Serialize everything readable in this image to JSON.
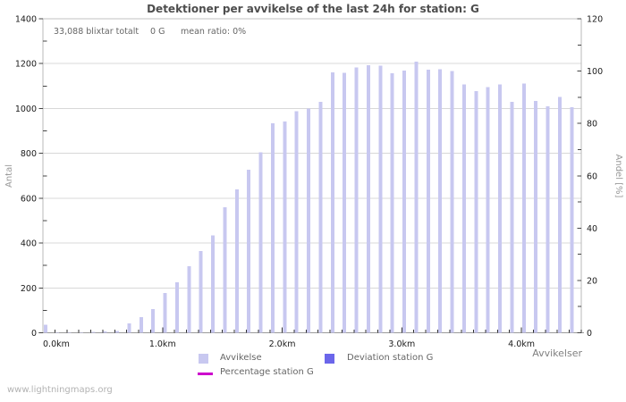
{
  "window": {
    "title": "Detektioner per avvikelse of the last 24h for station: G"
  },
  "chart_data": {
    "type": "bar",
    "title": "Detektioner per avvikelse of the last 24h for station: G",
    "stats_line": {
      "total": "33,088 blixtar totalt",
      "station_count": "0 G",
      "mean_ratio": "mean ratio: 0%"
    },
    "xlabel": "Avvikelser",
    "ylabel_left": "Antal",
    "ylabel_right": "Andel [%]",
    "ylim_left": [
      0,
      1400
    ],
    "ylim_right": [
      0,
      120
    ],
    "y_left_major_step": 200,
    "y_left_minor_step": 100,
    "y_right_major_step": 20,
    "y_right_minor_step": 10,
    "xlim_km": [
      0,
      4.5
    ],
    "x_minor_step_km": 0.1,
    "x_tick_labels": [
      "0.0km",
      "1.0km",
      "2.0km",
      "3.0km",
      "4.0km"
    ],
    "grid": true,
    "legend_position": "bottom",
    "x_km": [
      0.0,
      0.1,
      0.2,
      0.3,
      0.4,
      0.5,
      0.6,
      0.7,
      0.8,
      0.9,
      1.0,
      1.1,
      1.2,
      1.3,
      1.4,
      1.5,
      1.6,
      1.7,
      1.8,
      1.9,
      2.0,
      2.1,
      2.2,
      2.3,
      2.4,
      2.5,
      2.6,
      2.7,
      2.8,
      2.9,
      3.0,
      3.1,
      3.2,
      3.3,
      3.4,
      3.5,
      3.6,
      3.7,
      3.8,
      3.9,
      4.0,
      4.1,
      4.2,
      4.3,
      4.4
    ],
    "series": [
      {
        "name": "Avvikelse",
        "type": "bar",
        "color": "#c8c8f0",
        "values": [
          35,
          1,
          1,
          2,
          4,
          5,
          8,
          42,
          70,
          105,
          178,
          225,
          297,
          364,
          434,
          560,
          640,
          726,
          805,
          934,
          942,
          988,
          1000,
          1030,
          1162,
          1160,
          1182,
          1192,
          1190,
          1157,
          1168,
          1208,
          1172,
          1175,
          1167,
          1107,
          1078,
          1096,
          1108,
          1030,
          1112,
          1034,
          1010,
          1051,
          1005
        ]
      },
      {
        "name": "Deviation station G",
        "type": "bar",
        "color": "#6b66ea",
        "values": [
          0,
          0,
          0,
          0,
          0,
          0,
          0,
          0,
          0,
          0,
          0,
          0,
          0,
          0,
          0,
          0,
          0,
          0,
          0,
          0,
          0,
          0,
          0,
          0,
          0,
          0,
          0,
          0,
          0,
          0,
          0,
          0,
          0,
          0,
          0,
          0,
          0,
          0,
          0,
          0,
          0,
          0,
          0,
          0,
          0
        ]
      },
      {
        "name": "Percentage station G",
        "type": "line",
        "color": "#cc00cc",
        "values": [
          0,
          0,
          0,
          0,
          0,
          0,
          0,
          0,
          0,
          0,
          0,
          0,
          0,
          0,
          0,
          0,
          0,
          0,
          0,
          0,
          0,
          0,
          0,
          0,
          0,
          0,
          0,
          0,
          0,
          0,
          0,
          0,
          0,
          0,
          0,
          0,
          0,
          0,
          0,
          0,
          0,
          0,
          0,
          0,
          0
        ]
      }
    ]
  },
  "footer": {
    "watermark": "www.lightningmaps.org"
  }
}
